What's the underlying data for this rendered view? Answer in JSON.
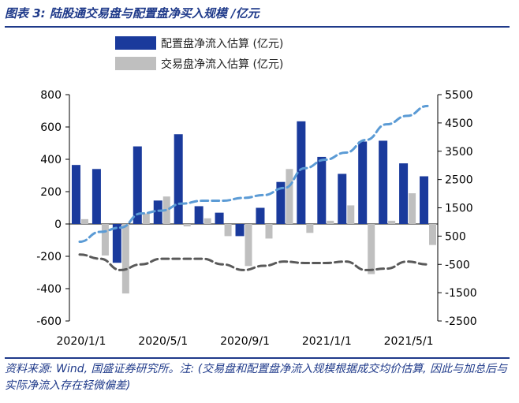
{
  "header": {
    "title": "图表 3:  陆股通交易盘与配置盘净买入规模 /亿元"
  },
  "footer": {
    "source": "资料来源: Wind, 国盛证券研究所。注: (交易盘和配置盘净流入规模根据成交均价估算, 因此与加总后与实际净流入存在轻微偏差)"
  },
  "colors": {
    "allocation": "#1a3a9c",
    "trading": "#bfbfbf",
    "cum_allocation": "#5b9bd5",
    "cum_trading": "#595959"
  },
  "chart_data": {
    "type": "bar",
    "title": "",
    "x_tick_labels": [
      "2020/1/1",
      "2020/5/1",
      "2020/9/1",
      "2021/1/1",
      "2021/5/1"
    ],
    "left_axis": {
      "ylim": [
        -600,
        800
      ],
      "ticks": [
        -600,
        -400,
        -200,
        0,
        200,
        400,
        600,
        800
      ]
    },
    "right_axis": {
      "ylim": [
        -2500,
        5500
      ],
      "ticks": [
        -2500,
        -1500,
        -500,
        500,
        1500,
        2500,
        3500,
        4500,
        5500
      ]
    },
    "series": [
      {
        "name": "配置盘净流入估算 (亿元)",
        "type": "bar",
        "axis": "left",
        "values": [
          365,
          340,
          -240,
          480,
          145,
          555,
          110,
          70,
          -75,
          100,
          260,
          635,
          415,
          310,
          510,
          515,
          375,
          295
        ]
      },
      {
        "name": "交易盘净流入估算 (亿元)",
        "type": "bar",
        "axis": "left",
        "values": [
          30,
          -195,
          -430,
          65,
          170,
          -15,
          35,
          -75,
          -260,
          -90,
          340,
          -55,
          20,
          115,
          -310,
          20,
          190,
          -130
        ]
      },
      {
        "type": "line",
        "style": "dashed",
        "axis": "right",
        "values": [
          300,
          650,
          800,
          1300,
          1400,
          1650,
          1750,
          1750,
          1850,
          1950,
          2200,
          2900,
          3200,
          3450,
          3900,
          4450,
          4750,
          5100
        ]
      },
      {
        "type": "line",
        "style": "dashed",
        "axis": "right",
        "values": [
          -150,
          -300,
          -700,
          -500,
          -300,
          -300,
          -300,
          -500,
          -700,
          -550,
          -400,
          -450,
          -450,
          -400,
          -700,
          -650,
          -400,
          -500
        ]
      }
    ],
    "legend_position": "top"
  }
}
